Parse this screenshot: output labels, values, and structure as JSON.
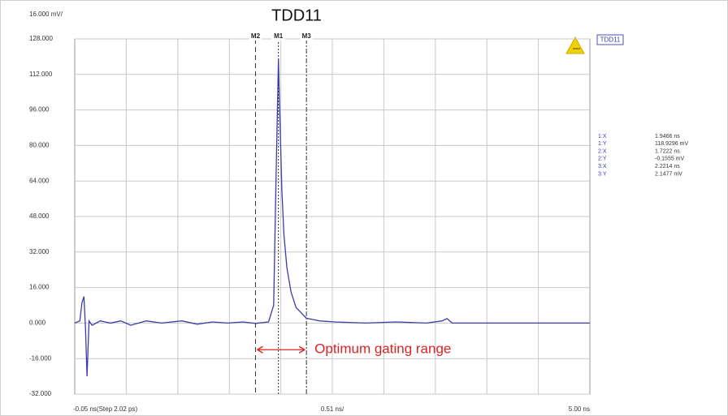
{
  "chart_data": {
    "type": "line",
    "title": "TDD11",
    "y_scale_label": "16.000 mV/",
    "x_start_label": "-0.05 ns(Step 2.02 ps)",
    "x_scale_label": "0.51 ns/",
    "x_end_label": "5.00 ns",
    "legend": "TDD11",
    "annotation": "Optimum gating range",
    "xlim": [
      -0.05,
      5.0
    ],
    "x_grid_divisions": 10,
    "ylim": [
      -32,
      128
    ],
    "yticks": [
      {
        "value": 128,
        "label": "128.000"
      },
      {
        "value": 112,
        "label": "112.000"
      },
      {
        "value": 96,
        "label": "96.000"
      },
      {
        "value": 80,
        "label": "80.000"
      },
      {
        "value": 64,
        "label": "64.000"
      },
      {
        "value": 48,
        "label": "48.000"
      },
      {
        "value": 32,
        "label": "32.000"
      },
      {
        "value": 16,
        "label": "16.000"
      },
      {
        "value": 0,
        "label": "0.000"
      },
      {
        "value": -16,
        "label": "-16.000"
      },
      {
        "value": -32,
        "label": "-32.000"
      }
    ],
    "grid": true,
    "series": [
      {
        "name": "TDD11",
        "color": "#3c3ca8",
        "x": [
          -0.05,
          0.0,
          0.02,
          0.04,
          0.055,
          0.07,
          0.09,
          0.12,
          0.2,
          0.3,
          0.4,
          0.5,
          0.65,
          0.8,
          1.0,
          1.15,
          1.3,
          1.45,
          1.6,
          1.7222,
          1.85,
          1.9,
          1.925,
          1.9466,
          1.96,
          1.98,
          2.0,
          2.03,
          2.07,
          2.12,
          2.2214,
          2.35,
          2.5,
          2.8,
          3.1,
          3.4,
          3.55,
          3.6,
          3.65,
          3.8,
          4.2,
          4.6,
          5.0
        ],
        "values": [
          0,
          1,
          9,
          12,
          -2,
          -24,
          1,
          -1,
          1,
          0,
          1,
          -1,
          1,
          0,
          1,
          -0.5,
          0.5,
          0,
          0.5,
          -0.16,
          0.5,
          8,
          70,
          118.93,
          95,
          60,
          40,
          25,
          14,
          7,
          2.15,
          1,
          0.5,
          0,
          0.5,
          0,
          1,
          2,
          0,
          0,
          0,
          0,
          0
        ]
      }
    ],
    "markers": [
      {
        "label": "M2",
        "x": 1.7222,
        "style": "dashed"
      },
      {
        "label": "M1",
        "x": 1.9466,
        "style": "dotted"
      },
      {
        "label": "M3",
        "x": 2.2214,
        "style": "dashdot"
      }
    ],
    "gating_y": -12,
    "readout": [
      {
        "name": "1:X",
        "text": "1.9466 ns"
      },
      {
        "name": "1:Y",
        "text": "118.9296 mV"
      },
      {
        "name": "2:X",
        "text": "1.7222 ns"
      },
      {
        "name": "2:Y",
        "text": "-0.1555 mV"
      },
      {
        "name": "3:X",
        "text": "2.2214 ns"
      },
      {
        "name": "3:Y",
        "text": "2.1477 mV"
      }
    ]
  }
}
